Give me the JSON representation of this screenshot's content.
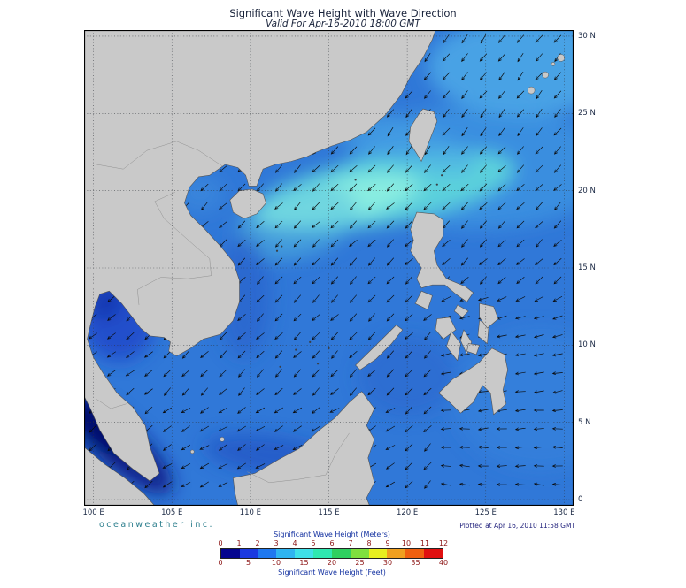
{
  "title": "Significant Wave Height with Wave Direction",
  "valid_line": "Valid For Apr-16-2010 18:00 GMT",
  "branding": "oceanweather inc.",
  "plotted_line": "Plotted at Apr 16, 2010 11:58 GMT",
  "axes": {
    "lon_ticks": [
      {
        "label": "100 E",
        "lon": 100
      },
      {
        "label": "105 E",
        "lon": 105
      },
      {
        "label": "110 E",
        "lon": 110
      },
      {
        "label": "115 E",
        "lon": 115
      },
      {
        "label": "120 E",
        "lon": 120
      },
      {
        "label": "125 E",
        "lon": 125
      },
      {
        "label": "130 E",
        "lon": 130
      }
    ],
    "lat_ticks": [
      {
        "label": "30 N",
        "lat": 30
      },
      {
        "label": "25 N",
        "lat": 25
      },
      {
        "label": "20 N",
        "lat": 20
      },
      {
        "label": "15 N",
        "lat": 15
      },
      {
        "label": "10 N",
        "lat": 10
      },
      {
        "label": "5 N",
        "lat": 5
      },
      {
        "label": "0",
        "lat": 0
      }
    ]
  },
  "legend": {
    "meters_label": "Significant Wave Height (Meters)",
    "feet_label": "Significant Wave Height (Feet)",
    "meters_ticks": [
      "0",
      "1",
      "2",
      "3",
      "4",
      "5",
      "6",
      "7",
      "8",
      "9",
      "10",
      "11",
      "12"
    ],
    "feet_ticks": [
      "0",
      "5",
      "10",
      "15",
      "20",
      "25",
      "30",
      "35",
      "40"
    ],
    "colors": [
      "#05058f",
      "#1b3ae0",
      "#1f78ef",
      "#2fb4f0",
      "#3fe0e8",
      "#2fe8b0",
      "#2fd060",
      "#7fe03f",
      "#e8ef20",
      "#f0a020",
      "#ef6010",
      "#e01010"
    ]
  },
  "map": {
    "lon_min": 99.4,
    "lon_max": 130.6,
    "lat_min": -0.4,
    "lat_max": 30.4,
    "land_color": "#c9c9c9",
    "coast_color": "#555555",
    "sea_color": "#3078d8",
    "arrow_color": "#0a0a0a",
    "grid_color": "#30343a"
  },
  "chart_data": {
    "type": "heatmap",
    "title": "Significant Wave Height with Wave Direction",
    "valid_time": "Apr-16-2010 18:00 GMT",
    "colorbar_meters": [
      0,
      1,
      2,
      3,
      4,
      5,
      6,
      7,
      8,
      9,
      10,
      11,
      12
    ],
    "colorbar_feet": [
      0,
      5,
      10,
      15,
      20,
      25,
      30,
      35,
      40
    ],
    "lon_range_deg_e": [
      100,
      130
    ],
    "lat_range_deg_n": [
      0,
      30
    ]
  }
}
